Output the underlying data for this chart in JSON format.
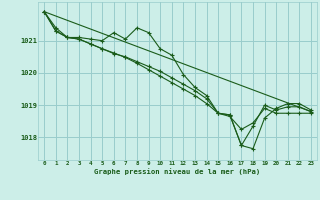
{
  "title": "Graphe pression niveau de la mer (hPa)",
  "background_color": "#cceee8",
  "grid_color": "#99cccc",
  "line_color": "#1a5c1a",
  "x_ticks": [
    0,
    1,
    2,
    3,
    4,
    5,
    6,
    7,
    8,
    9,
    10,
    11,
    12,
    13,
    14,
    15,
    16,
    17,
    18,
    19,
    20,
    21,
    22,
    23
  ],
  "y_ticks": [
    1018,
    1019,
    1020,
    1021
  ],
  "ylim": [
    1017.3,
    1022.2
  ],
  "xlim": [
    -0.5,
    23.5
  ],
  "series": [
    {
      "x": [
        0,
        1,
        2,
        3,
        4,
        5,
        6,
        7,
        8,
        9,
        10,
        11,
        12,
        13,
        14,
        15,
        16,
        17,
        18,
        19,
        20,
        21,
        22,
        23
      ],
      "y": [
        1021.9,
        1021.4,
        1021.1,
        1021.1,
        1021.05,
        1021.0,
        1021.25,
        1021.05,
        1021.4,
        1021.25,
        1020.75,
        1020.55,
        1019.95,
        1019.55,
        1019.3,
        1018.75,
        1018.7,
        1017.75,
        1018.35,
        1019.0,
        1018.85,
        1018.95,
        1018.95,
        1018.8
      ]
    },
    {
      "x": [
        0,
        1,
        2,
        3,
        4,
        5,
        6,
        7,
        8,
        9,
        10,
        11,
        12,
        13,
        14,
        15,
        16,
        17,
        18,
        19,
        20,
        21,
        22,
        23
      ],
      "y": [
        1021.9,
        1021.3,
        1021.1,
        1021.05,
        1020.9,
        1020.75,
        1020.6,
        1020.5,
        1020.35,
        1020.2,
        1020.05,
        1019.85,
        1019.65,
        1019.45,
        1019.2,
        1018.75,
        1018.7,
        1017.75,
        1017.65,
        1018.6,
        1018.9,
        1019.05,
        1019.05,
        1018.85
      ]
    },
    {
      "x": [
        0,
        1,
        2,
        3,
        4,
        5,
        6,
        7,
        8,
        9,
        10,
        11,
        12,
        13,
        14,
        15,
        16,
        17,
        18,
        19,
        20,
        21,
        22,
        23
      ],
      "y": [
        1021.9,
        1021.3,
        1021.1,
        1021.05,
        1020.9,
        1020.75,
        1020.62,
        1020.48,
        1020.3,
        1020.1,
        1019.9,
        1019.7,
        1019.5,
        1019.3,
        1019.05,
        1018.75,
        1018.65,
        1018.25,
        1018.45,
        1018.9,
        1018.75,
        1018.75,
        1018.75,
        1018.75
      ]
    },
    {
      "x": [
        0,
        23
      ],
      "y": [
        1021.9,
        1018.8
      ]
    }
  ]
}
